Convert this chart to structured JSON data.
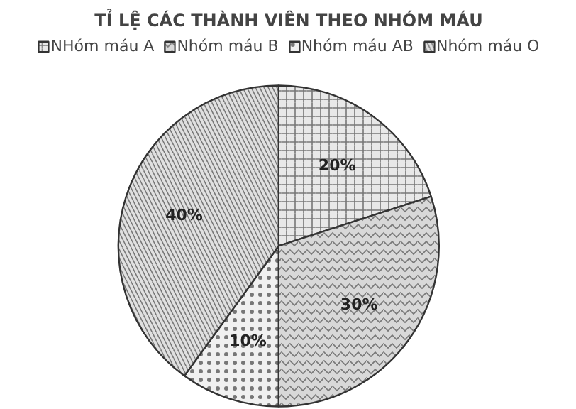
{
  "chart_data": {
    "type": "pie",
    "title": "TỈ LỆ CÁC THÀNH VIÊN THEO NHÓM MÁU",
    "categories": [
      "NHóm máu A",
      "Nhóm máu B",
      "Nhóm máu AB",
      "Nhóm máu O"
    ],
    "values": [
      20,
      30,
      10,
      40
    ],
    "colors": [
      "#e8e8e8",
      "#d8d8d8",
      "#f0f0f0",
      "#e0e0e0"
    ],
    "value_labels": [
      "20%",
      "30%",
      "10%",
      "40%"
    ],
    "legend": "top"
  }
}
